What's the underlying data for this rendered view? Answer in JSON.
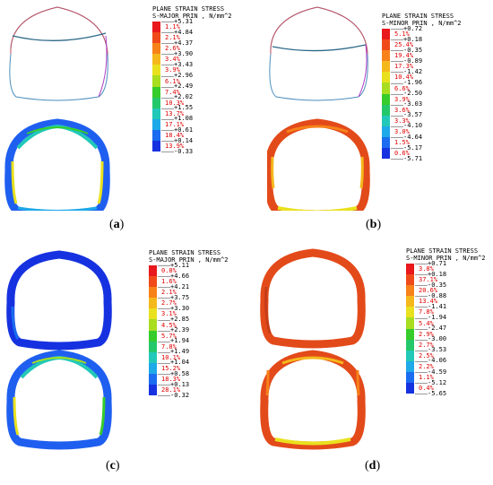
{
  "panels": [
    {
      "id": "a",
      "caption_letter": "a",
      "legend": {
        "title_line1": "PLANE STRAIN STRESS",
        "title_line2": "S-MAJOR PRIN , N/mm^2",
        "values": [
          "+5.31",
          "+4.84",
          "+4.37",
          "+3.90",
          "+3.43",
          "+2.96",
          "+2.49",
          "+2.02",
          "+1.55",
          "+1.08",
          "+0.61",
          "+0.14",
          "-0.33"
        ],
        "percents": [
          "1.1%",
          "2.1%",
          "2.6%",
          "3.4%",
          "3.9%",
          "6.1%",
          "7.4%",
          "10.3%",
          "13.7%",
          "17.1%",
          "18.4%",
          "13.9%"
        ]
      }
    },
    {
      "id": "b",
      "caption_letter": "b",
      "legend": {
        "title_line1": "PLANE STRAIN STRESS",
        "title_line2": "S-MINOR PRIN , N/mm^2",
        "values": [
          "+0.72",
          "+0.18",
          "-0.35",
          "-0.89",
          "-1.42",
          "-1.96",
          "-2.50",
          "-3.03",
          "-3.57",
          "-4.10",
          "-4.64",
          "-5.17",
          "-5.71"
        ],
        "percents": [
          "5.1%",
          "25.4%",
          "19.4%",
          "17.3%",
          "10.4%",
          "6.6%",
          "3.9%",
          "3.6%",
          "3.3%",
          "3.0%",
          "1.5%",
          "0.6%"
        ]
      }
    },
    {
      "id": "c",
      "caption_letter": "c",
      "legend": {
        "title_line1": "PLANE STRAIN STRESS",
        "title_line2": "S-MAJOR PRIN , N/mm^2",
        "values": [
          "+5.11",
          "+4.66",
          "+4.21",
          "+3.75",
          "+3.30",
          "+2.85",
          "+2.39",
          "+1.94",
          "+1.49",
          "+1.04",
          "+0.58",
          "+0.13",
          "-0.32"
        ],
        "percents": [
          "0.8%",
          "1.6%",
          "2.1%",
          "2.7%",
          "3.1%",
          "4.5%",
          "5.7%",
          "7.8%",
          "10.1%",
          "15.2%",
          "18.3%",
          "28.1%"
        ]
      }
    },
    {
      "id": "d",
      "caption_letter": "d",
      "legend": {
        "title_line1": "PLANE STRAIN STRESS",
        "title_line2": "S-MINOR PRIN , N/mm^2",
        "values": [
          "+0.71",
          "+0.18",
          "-0.35",
          "-0.88",
          "-1.41",
          "-1.94",
          "-2.47",
          "-3.00",
          "-3.53",
          "-4.06",
          "-4.59",
          "-5.12",
          "-5.65"
        ],
        "percents": [
          "3.8%",
          "37.1%",
          "20.6%",
          "13.4%",
          "7.8%",
          "5.4%",
          "2.9%",
          "2.7%",
          "2.5%",
          "2.2%",
          "1.1%",
          "0.4%"
        ]
      }
    }
  ],
  "colors": {
    "scale": [
      "#e8181c",
      "#f04a1a",
      "#f7821a",
      "#f5b81c",
      "#e9e11e",
      "#a8dd20",
      "#36cc2c",
      "#24c86a",
      "#22c8b8",
      "#1ea9e8",
      "#1b6cf0",
      "#1632e0"
    ],
    "outline_blue": "#4a8dbb",
    "outline_red": "#c55060",
    "outline_purple": "#b040c8"
  }
}
